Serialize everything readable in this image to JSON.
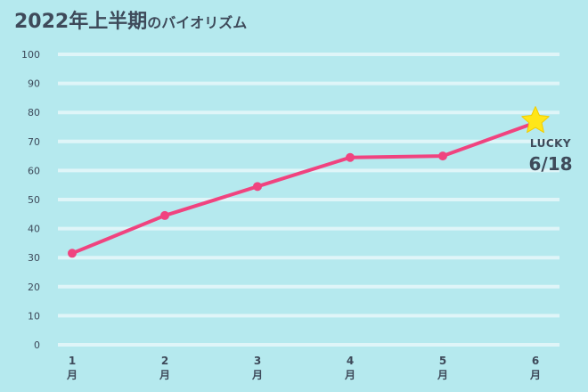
{
  "title": {
    "main": "2022年上半期",
    "sub": "のバイオリズム"
  },
  "annotation": {
    "label": "LUCKY",
    "date": "6/18"
  },
  "chart_data": {
    "type": "line",
    "categories": [
      "1\n月",
      "2\n月",
      "3\n月",
      "4\n月",
      "5\n月",
      "6\n月"
    ],
    "x_tick_numbers": [
      "1",
      "2",
      "3",
      "4",
      "5",
      "6"
    ],
    "x_tick_unit": "月",
    "series": [
      {
        "values": [
          31.5,
          44.5,
          54.5,
          64.5,
          65,
          76.5
        ],
        "color": "#f0437f"
      }
    ],
    "ylim": [
      0,
      100
    ],
    "yticks": [
      0,
      10,
      20,
      30,
      40,
      50,
      60,
      70,
      80,
      90,
      100
    ],
    "grid": true,
    "grid_color": "#dff5f8",
    "marker_last": "star",
    "star_color": "#ffe619"
  }
}
